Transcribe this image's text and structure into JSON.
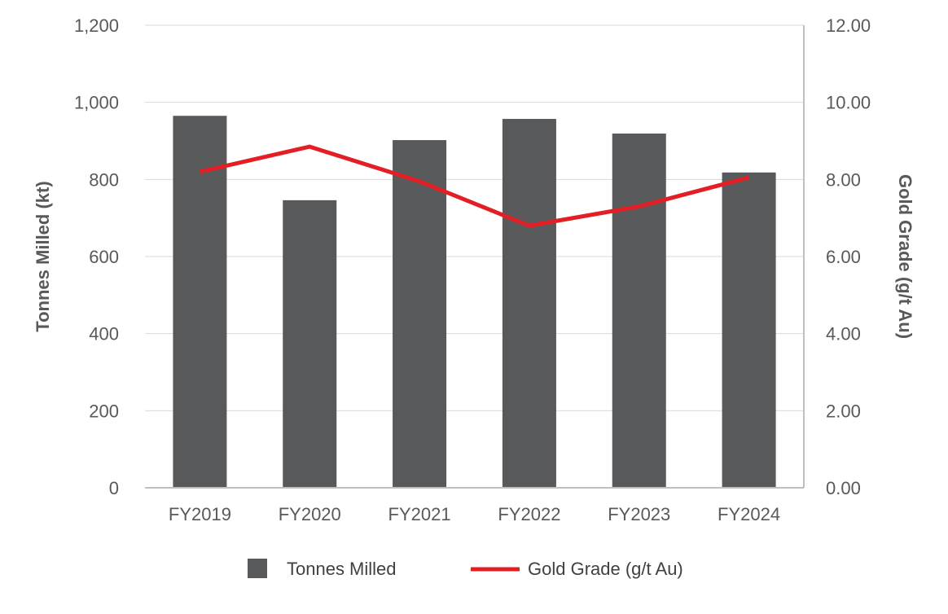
{
  "chart_data": {
    "type": "bar",
    "categories": [
      "FY2019",
      "FY2020",
      "FY2021",
      "FY2022",
      "FY2023",
      "FY2024"
    ],
    "series": [
      {
        "name": "Tonnes Milled",
        "type": "bar",
        "axis": "left",
        "values": [
          965,
          746,
          902,
          957,
          919,
          818
        ],
        "color": "#58595b"
      },
      {
        "name": "Gold Grade (g/t Au)",
        "type": "line",
        "axis": "right",
        "values": [
          8.2,
          8.85,
          7.95,
          6.8,
          7.3,
          8.05
        ],
        "color": "#e31e24"
      }
    ],
    "ylabel": "Tonnes Milled (kt)",
    "y2label": "Gold Grade (g/t Au)",
    "ylim": [
      0,
      1200
    ],
    "y2lim": [
      0,
      12
    ],
    "yticks": [
      "0",
      "200",
      "400",
      "600",
      "800",
      "1,000",
      "1,200"
    ],
    "y2ticks": [
      "0.00",
      "2.00",
      "4.00",
      "6.00",
      "8.00",
      "10.00",
      "12.00"
    ],
    "grid": true,
    "legend_position": "bottom"
  }
}
